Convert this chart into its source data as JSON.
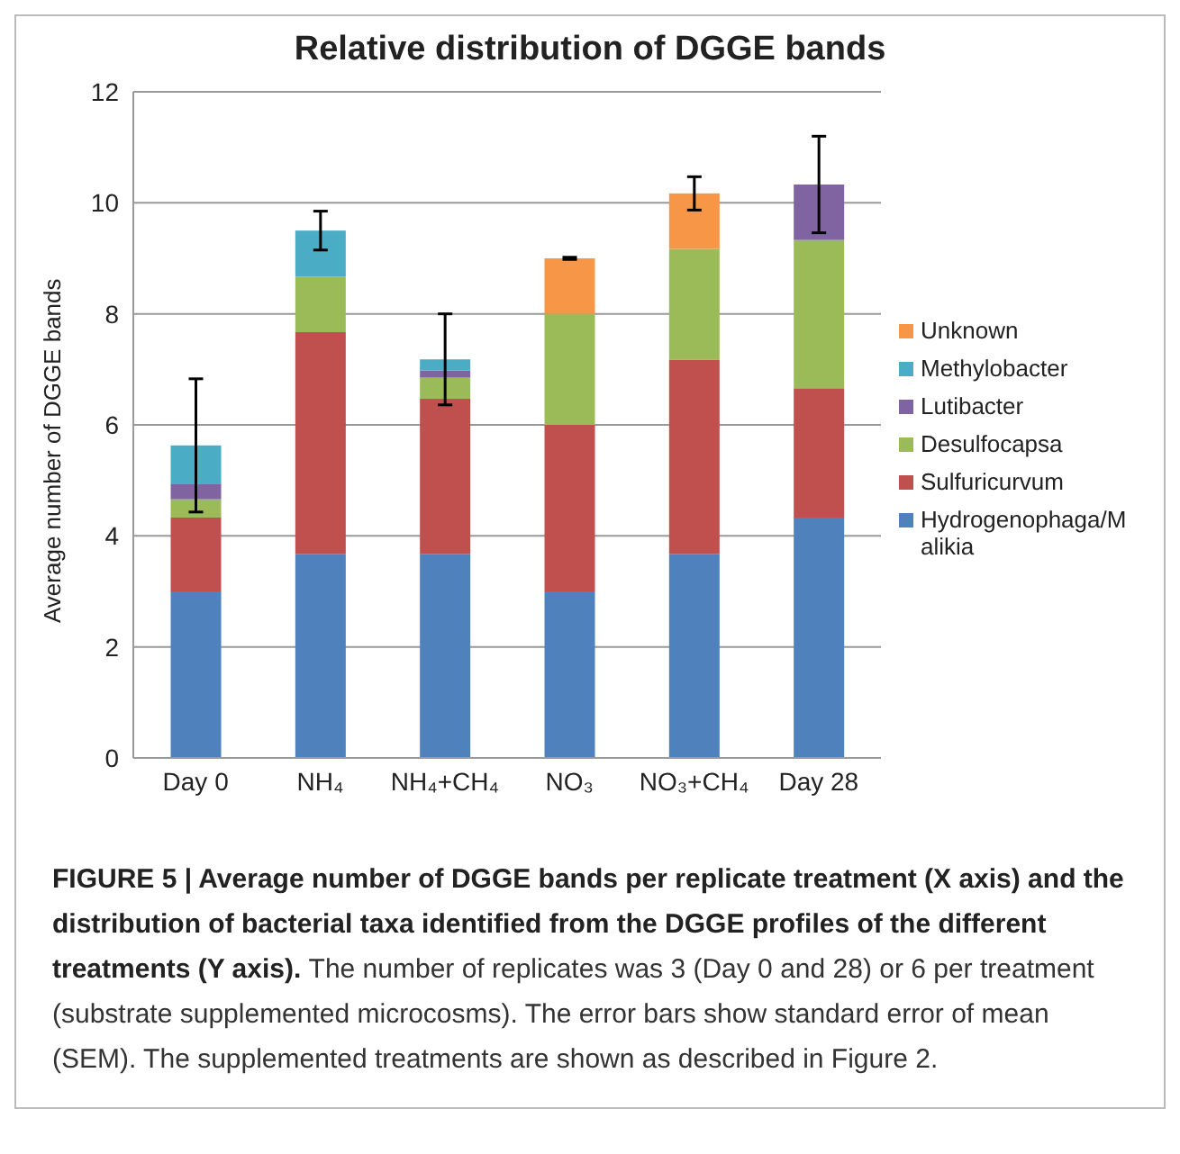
{
  "chart_data": {
    "type": "bar",
    "title": "Relative distribution of DGGE bands",
    "ylabel": "Average number of DGGE bands",
    "categories": [
      "Day 0",
      "NH₄",
      "NH₄+CH₄",
      "NO₃",
      "NO₃+CH₄",
      "Day 28"
    ],
    "stacked": true,
    "ylim": [
      0,
      12
    ],
    "yticks": [
      0,
      2,
      4,
      6,
      8,
      10,
      12
    ],
    "grid": "y",
    "legend": "right",
    "series": [
      {
        "name": "Hydrogenophaga/Malikia",
        "color": "#4f81bd",
        "values": [
          3.0,
          3.67,
          3.67,
          3.0,
          3.67,
          4.33
        ]
      },
      {
        "name": "Sulfuricurvum",
        "color": "#c0504d",
        "values": [
          1.33,
          4.0,
          2.8,
          3.0,
          3.5,
          2.33
        ]
      },
      {
        "name": "Desulfocapsa",
        "color": "#9bbb59",
        "values": [
          0.33,
          1.0,
          0.38,
          2.0,
          2.0,
          2.67
        ]
      },
      {
        "name": "Lutibacter",
        "color": "#8064a2",
        "values": [
          0.27,
          null,
          0.13,
          null,
          null,
          1.0
        ],
        "errors": [
          null,
          null,
          null,
          null,
          null,
          0.87
        ]
      },
      {
        "name": "Methylobacter",
        "color": "#4bacc6",
        "values": [
          0.7,
          0.83,
          0.2,
          null,
          null,
          null
        ],
        "errors": [
          1.2,
          0.35,
          0.82,
          null,
          null,
          null
        ]
      },
      {
        "name": "Unknown",
        "color": "#f79646",
        "values": [
          null,
          null,
          null,
          1.0,
          1.0,
          null
        ],
        "errors": [
          null,
          null,
          null,
          0.02,
          0.3,
          null
        ]
      }
    ],
    "annotations": [
      "FIGURE 5 | Average number of DGGE bands per replicate treatment (X axis) and the distribution of bacterial taxa identified from the DGGE profiles of the different treatments (Y axis).",
      "The number of replicates was 3 (Day 0 and 28) or 6 per treatment (substrate supplemented microcosms). The error bars show standard error of mean (SEM). The supplemented treatments are shown as described in Figure 2."
    ]
  }
}
